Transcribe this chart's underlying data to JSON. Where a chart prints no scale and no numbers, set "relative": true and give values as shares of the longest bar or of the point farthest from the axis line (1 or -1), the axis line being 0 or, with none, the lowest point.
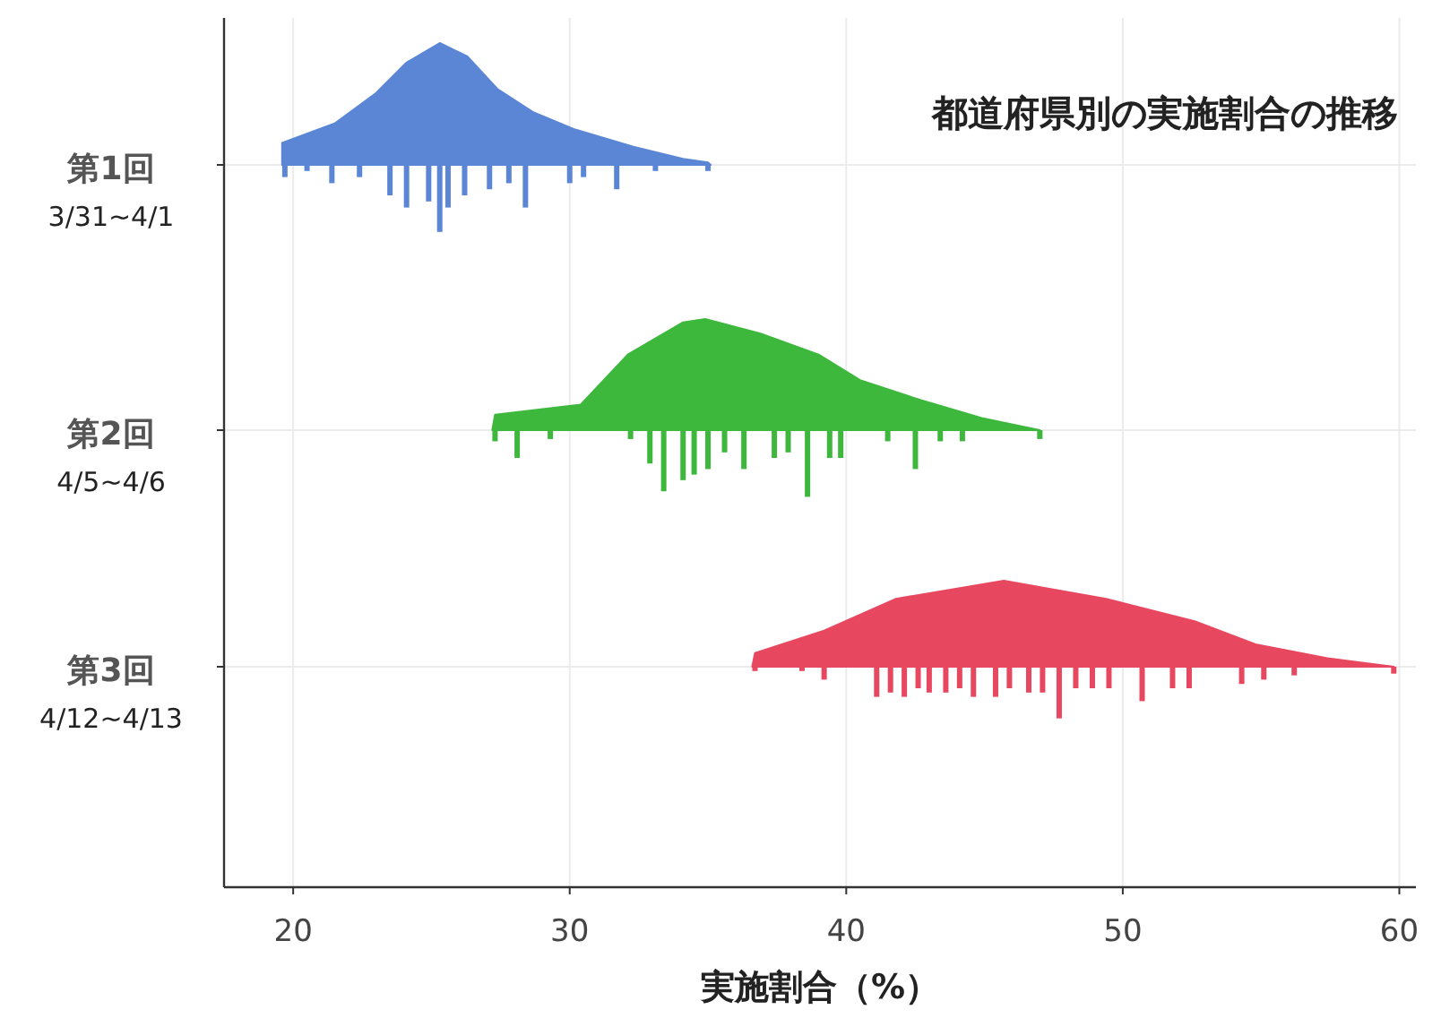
{
  "chart_data": [
    {
      "type": "area",
      "title": "都道府県別の実施割合の推移",
      "ylabel": "第1回",
      "annotations": [
        "3/31~4/1"
      ],
      "relative": true,
      "xlim": [
        17.5,
        60.6
      ],
      "xticks": [
        20,
        30,
        40,
        50,
        60
      ],
      "grid": "x",
      "tick_labels": false,
      "series": [
        {
          "color": "#5b86d6",
          "x": [
            19.6,
            19.6,
            21.5,
            23.0,
            24.1,
            25.3,
            26.3,
            27.4,
            28.7,
            30.2,
            32.3,
            34.1,
            35.0,
            35.1
          ],
          "values": [
            0,
            0.18,
            0.34,
            0.59,
            0.84,
            1,
            0.89,
            0.62,
            0.43,
            0.29,
            0.15,
            0.05,
            0.02,
            0
          ]
        },
        {
          "type": "bar",
          "color": "#5b86d6",
          "x": [
            19.7,
            20.5,
            21.4,
            22.4,
            23.5,
            24.1,
            24.9,
            25.3,
            25.6,
            26.2,
            27.1,
            27.8,
            28.4,
            30.0,
            30.5,
            31.7,
            33.1,
            35.0
          ],
          "values": [
            -0.1,
            -0.05,
            -0.15,
            -0.1,
            -0.25,
            -0.35,
            -0.3,
            -0.55,
            -0.35,
            -0.25,
            -0.2,
            -0.15,
            -0.35,
            -0.15,
            -0.1,
            -0.2,
            -0.05,
            -0.05
          ]
        }
      ]
    },
    {
      "type": "area",
      "ylabel": "第2回",
      "annotations": [
        "4/5~4/6"
      ],
      "relative": true,
      "xlim": [
        17.5,
        60.6
      ],
      "xticks": [
        20,
        30,
        40,
        50,
        60
      ],
      "grid": "x",
      "tick_labels": false,
      "series": [
        {
          "color": "#3db83d",
          "x": [
            27.2,
            27.3,
            30.4,
            32.1,
            34.1,
            34.9,
            36.9,
            39.0,
            40.5,
            42.7,
            44.9,
            47.0
          ],
          "values": [
            0,
            0.14,
            0.23,
            0.68,
            0.97,
            1,
            0.87,
            0.68,
            0.45,
            0.27,
            0.11,
            0
          ]
        },
        {
          "type": "bar",
          "color": "#3db83d",
          "x": [
            27.3,
            28.1,
            29.3,
            32.2,
            32.9,
            33.4,
            34.1,
            34.5,
            35.0,
            35.6,
            36.3,
            37.4,
            37.9,
            38.6,
            39.4,
            39.8,
            41.5,
            42.5,
            43.4,
            44.2,
            47.0
          ],
          "values": [
            -0.1,
            -0.25,
            -0.08,
            -0.08,
            -0.3,
            -0.55,
            -0.45,
            -0.4,
            -0.35,
            -0.2,
            -0.35,
            -0.25,
            -0.2,
            -0.6,
            -0.25,
            -0.25,
            -0.1,
            -0.35,
            -0.1,
            -0.1,
            -0.08
          ]
        }
      ]
    },
    {
      "type": "area",
      "ylabel": "第3回",
      "xlabel": "実施割合（%）",
      "annotations": [
        "4/12~4/13"
      ],
      "relative": true,
      "xlim": [
        17.5,
        60.6
      ],
      "xticks": [
        20,
        30,
        40,
        50,
        60
      ],
      "grid": "x",
      "tick_labels": "x",
      "series": [
        {
          "color": "#e8485f",
          "x": [
            36.6,
            36.7,
            39.2,
            41.8,
            45.7,
            49.4,
            52.6,
            54.8,
            57.4,
            59.8
          ],
          "values": [
            0,
            0.16,
            0.42,
            0.79,
            1,
            0.79,
            0.53,
            0.26,
            0.1,
            0
          ]
        },
        {
          "type": "bar",
          "color": "#e8485f",
          "x": [
            36.7,
            38.4,
            39.2,
            41.1,
            41.6,
            42.1,
            42.6,
            43.0,
            43.6,
            44.1,
            44.6,
            45.4,
            45.9,
            46.6,
            47.1,
            47.7,
            48.3,
            48.9,
            49.5,
            50.7,
            51.8,
            52.4,
            54.3,
            55.1,
            56.2,
            59.8
          ],
          "values": [
            -0.05,
            -0.05,
            -0.15,
            -0.35,
            -0.3,
            -0.35,
            -0.25,
            -0.3,
            -0.3,
            -0.25,
            -0.35,
            -0.35,
            -0.25,
            -0.3,
            -0.3,
            -0.6,
            -0.25,
            -0.25,
            -0.25,
            -0.4,
            -0.25,
            -0.25,
            -0.2,
            -0.15,
            -0.1,
            -0.08
          ]
        }
      ]
    }
  ]
}
